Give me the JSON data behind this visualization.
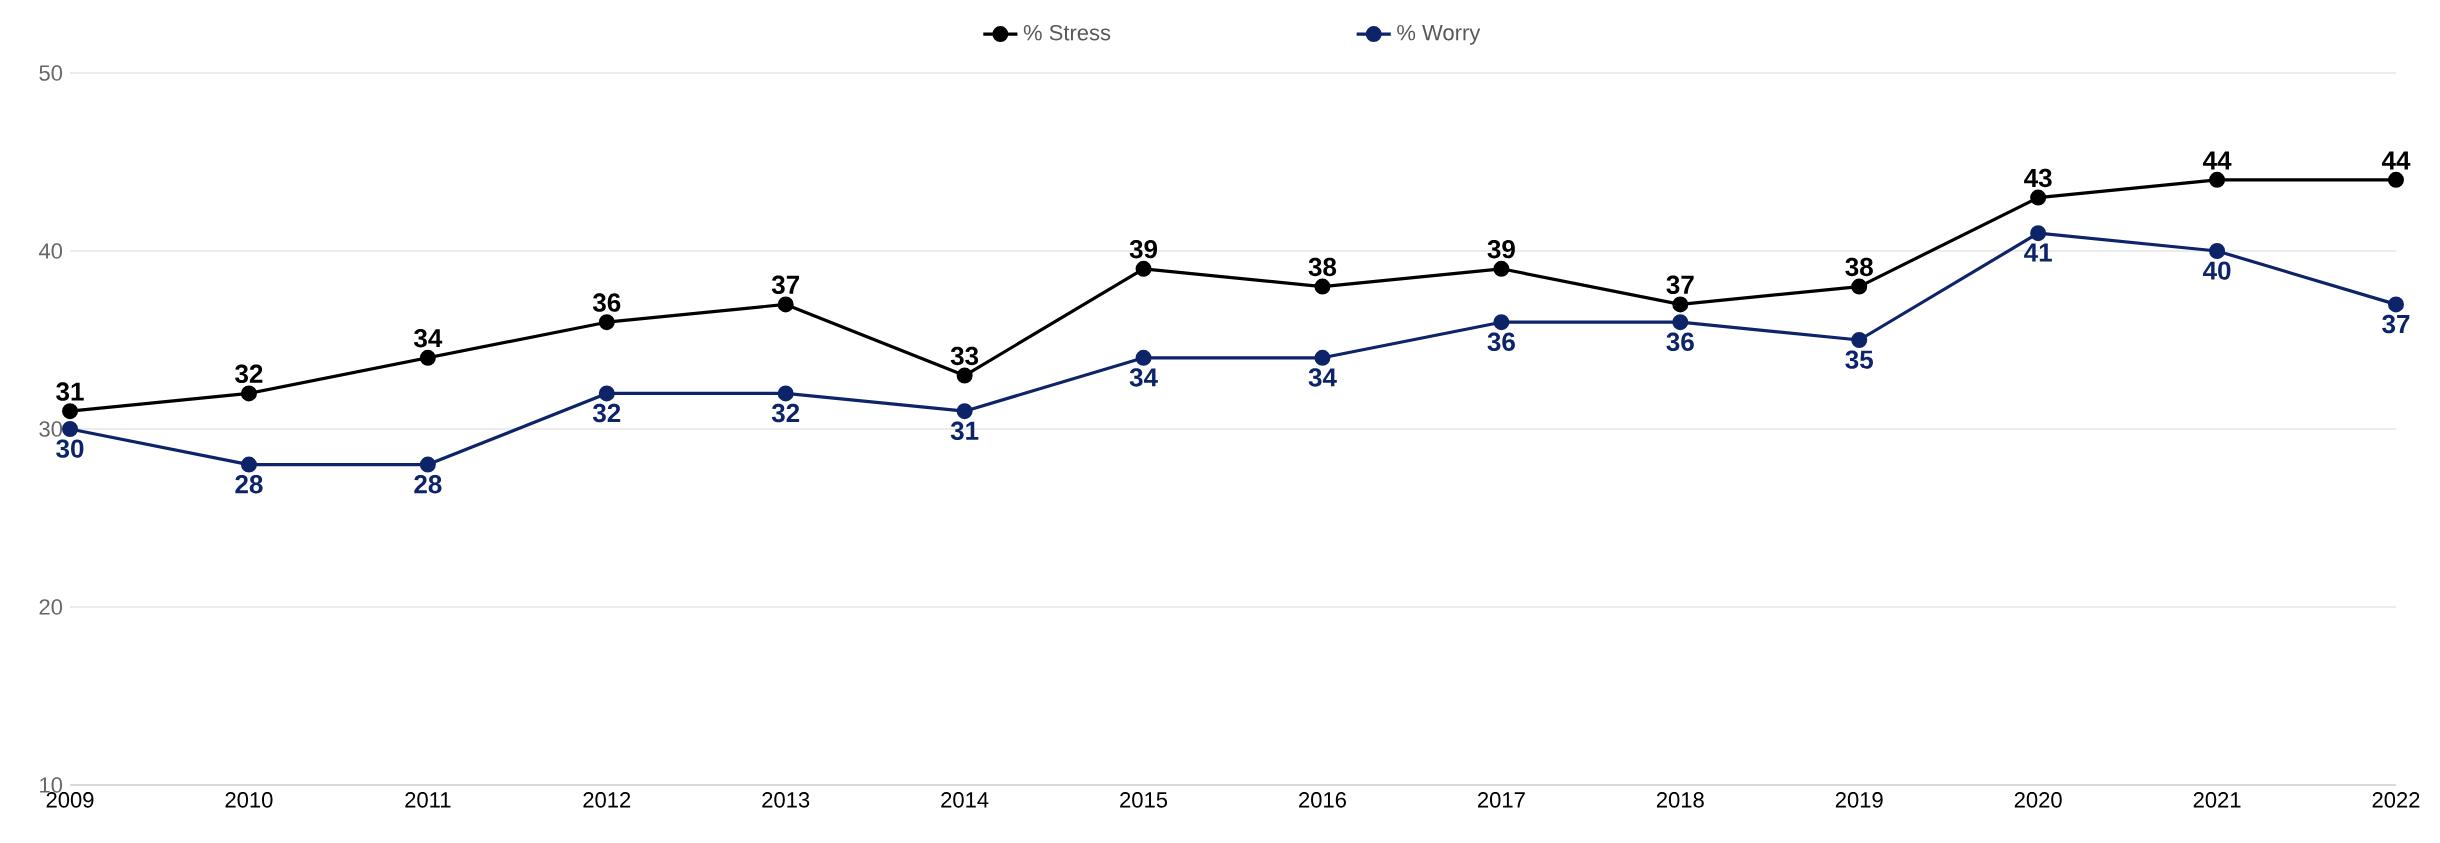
{
  "chart_data": {
    "type": "line",
    "categories": [
      "2009",
      "2010",
      "2011",
      "2012",
      "2013",
      "2014",
      "2015",
      "2016",
      "2017",
      "2018",
      "2019",
      "2020",
      "2021",
      "2022"
    ],
    "series": [
      {
        "name": "% Stress",
        "color": "#000000",
        "values": [
          31,
          32,
          34,
          36,
          37,
          33,
          39,
          38,
          39,
          37,
          38,
          43,
          44,
          44
        ]
      },
      {
        "name": "% Worry",
        "color": "#0d2469",
        "values": [
          30,
          28,
          28,
          32,
          32,
          31,
          34,
          34,
          36,
          36,
          35,
          41,
          40,
          37
        ]
      }
    ],
    "ylim": [
      10,
      50
    ],
    "yticks": [
      10,
      20,
      30,
      40,
      50
    ],
    "grid": "y",
    "legend": "top",
    "marker": "circle",
    "line_style": "solid",
    "data_labels": true
  }
}
